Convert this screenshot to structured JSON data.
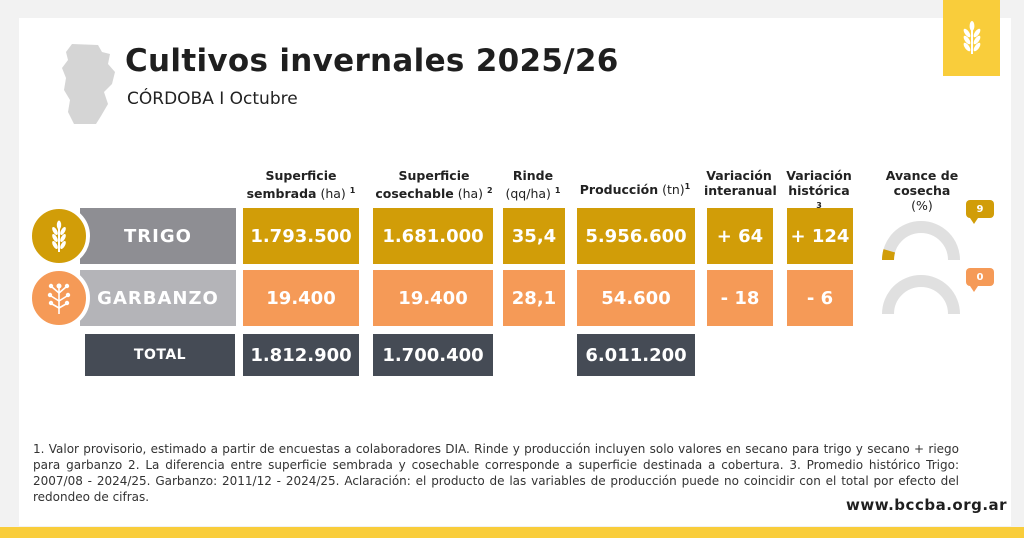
{
  "title": "Cultivos invernales 2025/26",
  "subtitle": "CÓRDOBA I Octubre",
  "headers": {
    "sembrada": {
      "line1": "Superficie",
      "line2": "sembrada",
      "unit": "(ha)",
      "note": "1"
    },
    "cosechable": {
      "line1": "Superficie",
      "line2": "cosechable",
      "unit": "(ha)",
      "note": "2"
    },
    "rinde": {
      "line1": "Rinde",
      "unit": "(qq/ha)",
      "note": "1"
    },
    "produccion": {
      "line1": "Producción",
      "unit": "(tn)",
      "note": "1"
    },
    "interanual": {
      "line1": "Variación",
      "line2": "interanual"
    },
    "historica": {
      "line1": "Variación",
      "line2": "histórica",
      "note": "3"
    },
    "avance": {
      "line1": "Avance de cosecha",
      "unit": "(%)"
    }
  },
  "rows": {
    "trigo": {
      "label": "TRIGO",
      "icon": "wheat-icon",
      "sembrada": "1.793.500",
      "cosechable": "1.681.000",
      "rinde": "35,4",
      "produccion": "5.956.600",
      "interanual": "+ 64",
      "historica": "+ 124",
      "avance_label": "9",
      "avance_pct": 9
    },
    "garbanzo": {
      "label": "GARBANZO",
      "icon": "chickpea-plant-icon",
      "sembrada": "19.400",
      "cosechable": "19.400",
      "rinde": "28,1",
      "produccion": "54.600",
      "interanual": "- 18",
      "historica": "- 6",
      "avance_label": "0",
      "avance_pct": 0
    },
    "total": {
      "label": "TOTAL",
      "sembrada": "1.812.900",
      "cosechable": "1.700.400",
      "produccion": "6.011.200"
    }
  },
  "footnote": "1. Valor provisorio, estimado a partir de encuestas a colaboradores DIA. Rinde y producción incluyen solo valores en secano para trigo y secano + riego para garbanzo 2. La diferencia entre superficie sembrada y cosechable corresponde a superficie destinada a cobertura. 3. Promedio histórico Trigo: 2007/08 - 2024/25. Garbanzo: 2011/12 - 2024/25. Aclaración: el producto de las variables de producción puede no coincidir con el total por efecto del redondeo de cifras.",
  "website": "www.bccba.org.ar",
  "colors": {
    "trigo": "#d19d08",
    "garbanzo": "#f59a57",
    "total": "#454b55",
    "brand": "#f9cd3b",
    "gauge_track": "#e0e0e0"
  },
  "icons": [
    "province-map-icon",
    "wheat-brand-icon"
  ]
}
